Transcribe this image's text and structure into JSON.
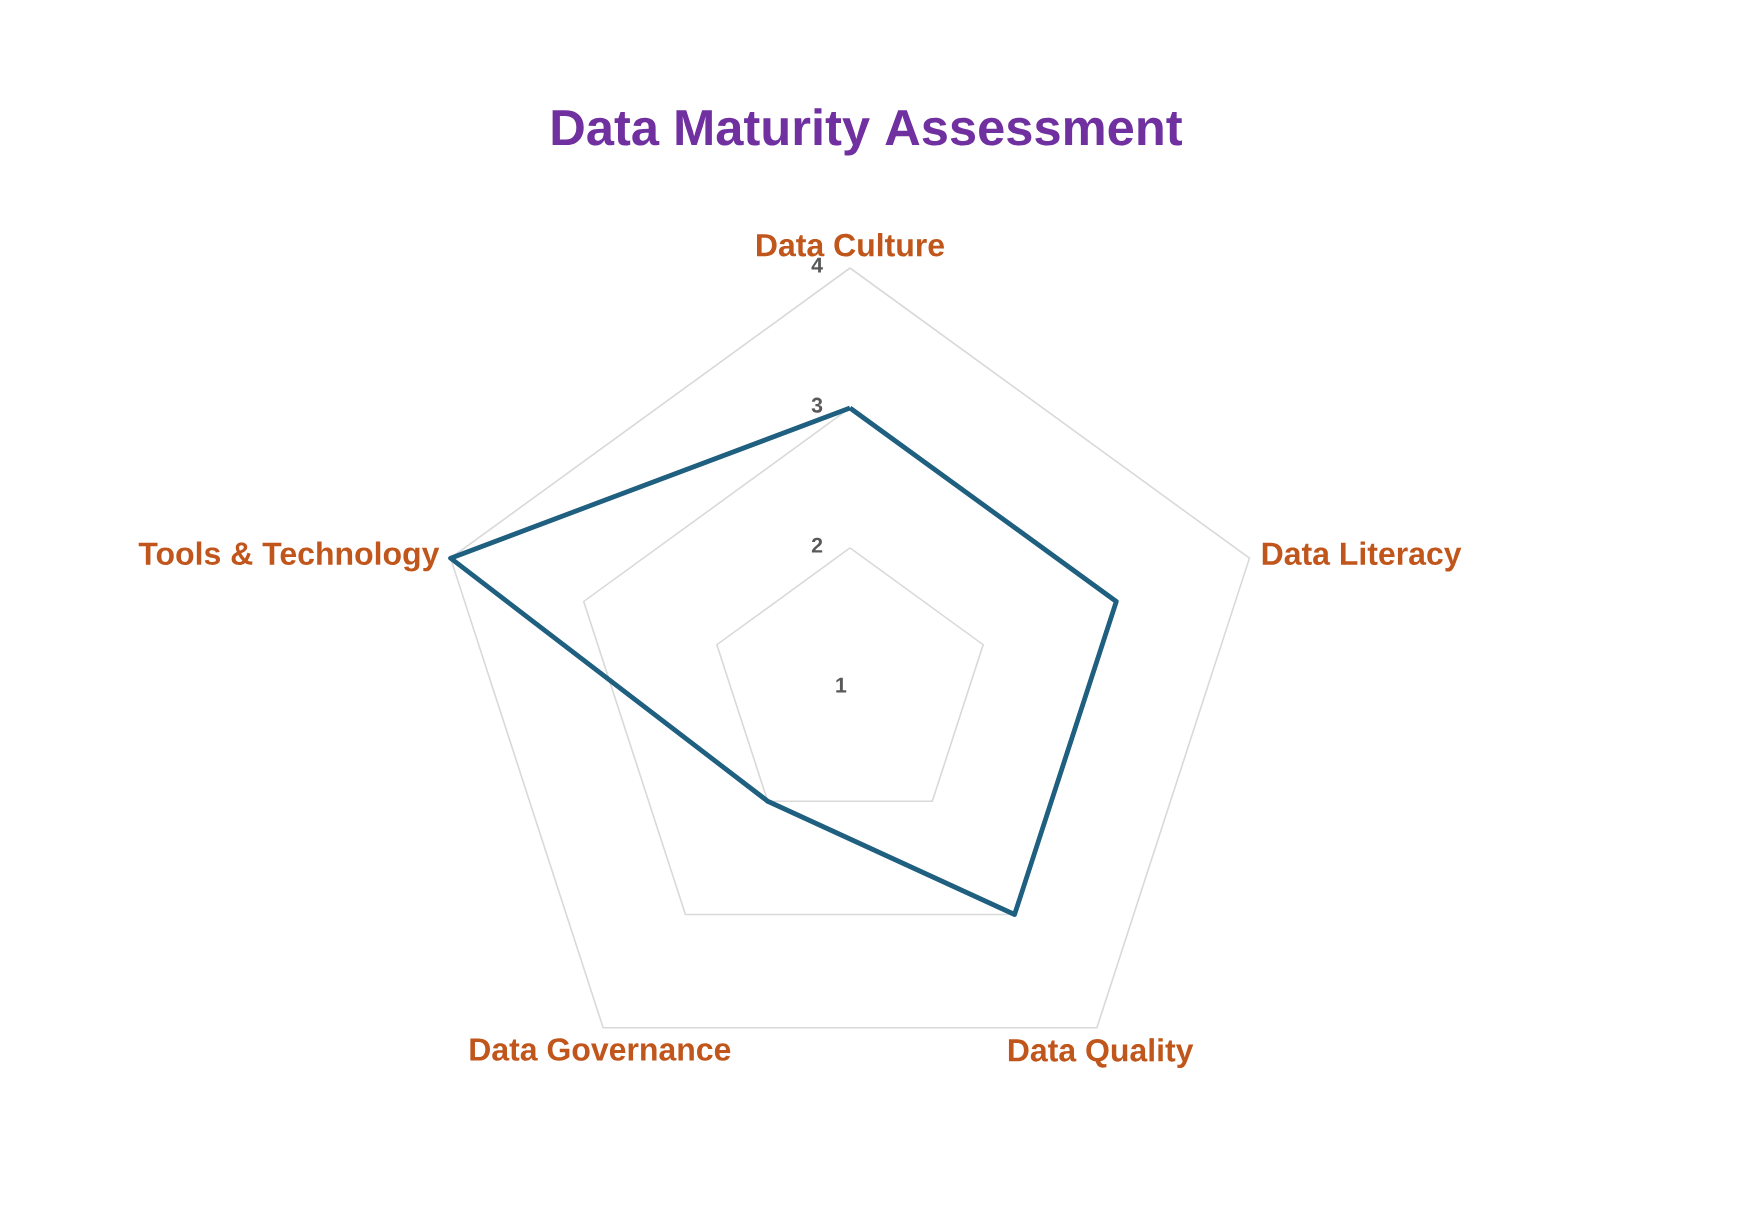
{
  "chart_data": {
    "type": "radar",
    "title": "Data Maturity Assessment",
    "categories": [
      "Data Culture",
      "Data Literacy",
      "Data Quality",
      "Data Governance",
      "Tools & Technology"
    ],
    "series": [
      {
        "color": "#1f5f7f",
        "values": [
          3,
          3,
          3,
          2,
          4
        ]
      }
    ],
    "ylim": [
      1,
      4
    ],
    "yticks": [
      1,
      2,
      3,
      4
    ],
    "grid": true
  }
}
